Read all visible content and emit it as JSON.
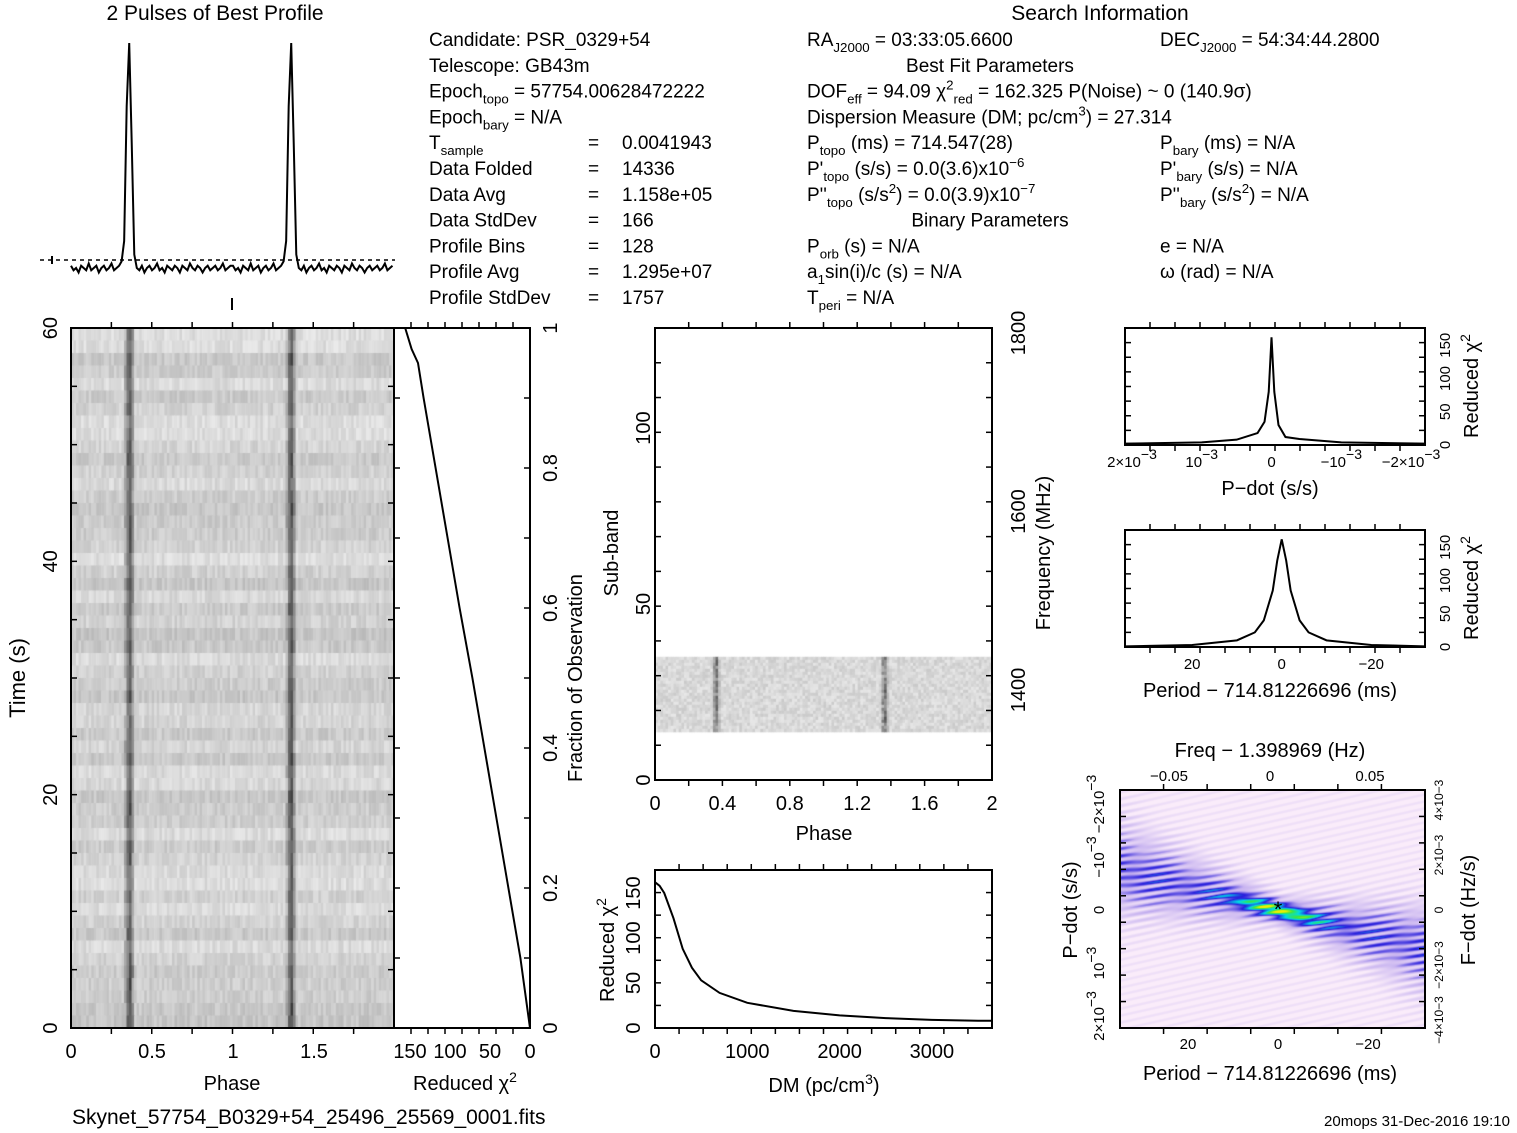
{
  "profile_title": "2 Pulses of Best Profile",
  "search_title": "Search Information",
  "info": {
    "left": [
      [
        "Candidate:  PSR_0329+54"
      ],
      [
        "Telescope:  GB43m"
      ],
      [
        "Epoch",
        {
          "sub": "topo"
        },
        " = 57754.00628472222"
      ],
      [
        "Epoch",
        {
          "sub": "bary"
        },
        " = N/A"
      ],
      [
        "T",
        {
          "sub": "sample"
        }
      ],
      [
        "Data Folded"
      ],
      [
        "Data Avg"
      ],
      [
        "Data StdDev"
      ],
      [
        "Profile Bins"
      ],
      [
        "Profile Avg"
      ],
      [
        "Profile StdDev"
      ]
    ],
    "left_values": [
      null,
      null,
      null,
      null,
      "0.0041943",
      "14336",
      "1.158e+05",
      "166",
      "128",
      "1.295e+07",
      "1757"
    ],
    "equals": "=",
    "mid": [
      [
        "RA",
        {
          "sub": "J2000"
        },
        " = 03:33:05.6600"
      ],
      {
        "heading": "Best Fit Parameters"
      },
      [
        "DOF",
        {
          "sub": "eff"
        },
        " = 94.09  χ",
        {
          "sup": "2"
        },
        {
          "sub": "red"
        },
        " = 162.325  P(Noise) ~ 0   (140.9σ)"
      ],
      [
        "Dispersion Measure (DM; pc/cm",
        {
          "sup": "3"
        },
        ") = 27.314"
      ],
      [
        "P",
        {
          "sub": "topo"
        },
        " (ms) =  714.547(28)"
      ],
      [
        "P'",
        {
          "sub": "topo"
        },
        " (s/s) = 0.0(3.6)x10",
        {
          "sup": "−6"
        }
      ],
      [
        "P''",
        {
          "sub": "topo"
        },
        " (s/s",
        {
          "sup": "2"
        },
        ") = 0.0(3.9)x10",
        {
          "sup": "−7"
        }
      ],
      {
        "heading": "Binary Parameters"
      },
      [
        "P",
        {
          "sub": "orb"
        },
        " (s) = N/A"
      ],
      [
        "a",
        {
          "sub": "1"
        },
        "sin(i)/c (s) = N/A"
      ],
      [
        "T",
        {
          "sub": "peri"
        },
        " = N/A"
      ]
    ],
    "right": [
      [
        "DEC",
        {
          "sub": "J2000"
        },
        " = 54:34:44.2800"
      ],
      null,
      null,
      null,
      [
        "P",
        {
          "sub": "bary"
        },
        " (ms) = N/A"
      ],
      [
        "P'",
        {
          "sub": "bary"
        },
        " (s/s) = N/A"
      ],
      [
        "P''",
        {
          "sub": "bary"
        },
        " (s/s",
        {
          "sup": "2"
        },
        ") = N/A"
      ],
      null,
      [
        "e = N/A"
      ],
      [
        "ω (rad) = N/A"
      ]
    ]
  },
  "footer": {
    "filename": "Skynet_57754_B0329+54_25496_25569_0001.fits",
    "stamp": "20mops 31-Dec-2016 19:10"
  },
  "chart_data": [
    {
      "id": "profile",
      "type": "line",
      "title": "2 Pulses of Best Profile",
      "x_range": [
        0,
        2
      ],
      "pulses": 2,
      "values_one_period": [
        0.01,
        -0.01,
        0.0,
        -0.02,
        0.01,
        0.0,
        -0.01,
        0.02,
        -0.01,
        0.0,
        0.01,
        -0.02,
        0.0,
        0.01,
        -0.01,
        0.0,
        0.02,
        -0.01,
        0.0,
        0.01,
        0.03,
        0.12,
        0.72,
        1.0,
        0.55,
        0.06,
        0.0,
        -0.01,
        0.01,
        -0.02,
        0.0,
        0.01,
        -0.01,
        0.0,
        0.02,
        -0.01,
        0.0,
        -0.02,
        0.01,
        0.0,
        -0.01,
        0.01,
        0.0,
        -0.02,
        0.01,
        0.0,
        -0.01,
        0.02,
        0.0,
        -0.01,
        0.01,
        0.0,
        -0.02,
        0.0,
        0.01,
        -0.01,
        0.0,
        0.01,
        -0.01,
        0.0,
        0.02,
        -0.01,
        0.0,
        0.01
      ]
    },
    {
      "id": "time-phase",
      "type": "heatmap",
      "xlabel": "Phase",
      "ylabel": "Time (s)",
      "x_range": [
        0,
        2
      ],
      "y_range": [
        0,
        60
      ],
      "xticks": [
        "0",
        "0.5",
        "1",
        "1.5"
      ],
      "yticks": [
        "0",
        "20",
        "40",
        "60"
      ],
      "pulse_phase": 0.355,
      "subintegrations": 56
    },
    {
      "id": "chi2-vs-time",
      "type": "line",
      "xlabel": "Reduced χ2",
      "ylabel": "Fraction of Observation",
      "x_range": [
        0,
        165
      ],
      "y_range": [
        0,
        1
      ],
      "xticks": [
        "150",
        "100",
        "50",
        "0"
      ],
      "yticks": [
        "0",
        "0.2",
        "0.4",
        "0.6",
        "0.8",
        "1"
      ],
      "fraction": [
        0,
        0.05,
        0.1,
        0.2,
        0.3,
        0.4,
        0.5,
        0.6,
        0.7,
        0.8,
        0.9,
        0.95,
        0.97,
        1.0
      ],
      "chi2": [
        0,
        6,
        12,
        27,
        42,
        57,
        72,
        88,
        103,
        118,
        133,
        140,
        148,
        156
      ]
    },
    {
      "id": "subband-phase",
      "type": "heatmap",
      "xlabel": "Phase",
      "ylabel": "Sub-band",
      "y2label": "Frequency (MHz)",
      "x_range": [
        0,
        2
      ],
      "y_range": [
        0,
        128
      ],
      "xticks": [
        "0",
        "0.4",
        "0.8",
        "1.2",
        "1.6",
        "2"
      ],
      "yticks": [
        "0",
        "50",
        "100"
      ],
      "y2ticks": [
        "1400",
        "1600",
        "1800"
      ],
      "data_subbands": [
        14,
        35
      ],
      "pulse_phase": 0.355
    },
    {
      "id": "chi2-vs-dm",
      "type": "line",
      "xlabel": "DM (pc/cm3)",
      "ylabel": "Reduced χ2",
      "x_range": [
        0,
        3650
      ],
      "y_range": [
        0,
        175
      ],
      "xticks": [
        "0",
        "1000",
        "2000",
        "3000"
      ],
      "yticks": [
        "0",
        "50",
        "100",
        "150"
      ],
      "dm": [
        0,
        50,
        100,
        200,
        300,
        400,
        500,
        700,
        1000,
        1500,
        2000,
        2500,
        3000,
        3500,
        3650
      ],
      "chi2": [
        162,
        158,
        150,
        122,
        88,
        67,
        53,
        39,
        28,
        19,
        14,
        11,
        9,
        8,
        8
      ]
    },
    {
      "id": "chi2-vs-pdot",
      "type": "line",
      "xlabel": "P−dot (s/s)",
      "ylabel": "Reduced χ2",
      "x_range": [
        0.0021,
        -0.0022
      ],
      "y_range": [
        0,
        175
      ],
      "xticks": [
        "2×10−3",
        "10−3",
        "0",
        "−10−3",
        "−2×10−3"
      ],
      "yticks": [
        "0",
        "50",
        "100",
        "150"
      ],
      "pdot": [
        0.0021,
        0.001,
        0.0005,
        0.0002,
        0.0001,
        4e-05,
        0,
        -4e-05,
        -0.0001,
        -0.0002,
        -0.0004,
        -0.001,
        -0.0022
      ],
      "chi2": [
        2,
        4,
        8,
        18,
        35,
        80,
        162,
        80,
        30,
        12,
        9,
        4,
        2
      ]
    },
    {
      "id": "chi2-vs-period",
      "type": "line",
      "xlabel": "Period − 714.81226696 (ms)",
      "ylabel": "Reduced χ2",
      "x_range": [
        35,
        -32
      ],
      "y_range": [
        0,
        175
      ],
      "xticks": [
        "20",
        "0",
        "−20"
      ],
      "yticks": [
        "0",
        "50",
        "100",
        "150"
      ],
      "period": [
        35,
        20,
        10,
        6,
        4,
        2,
        1,
        0,
        -1,
        -2,
        -4,
        -6,
        -10,
        -20,
        -32
      ],
      "chi2": [
        1,
        3,
        10,
        22,
        40,
        85,
        130,
        162,
        130,
        85,
        40,
        22,
        10,
        3,
        1
      ]
    },
    {
      "id": "period-pdot",
      "type": "heatmap",
      "xlabel": "Period − 714.81226696 (ms)",
      "ylabel": "P−dot (s/s)",
      "x2label": "Freq − 1.398969 (Hz)",
      "y2label": "F−dot (Hz/s)",
      "x_range": [
        35,
        -32
      ],
      "y_range": [
        0.0021,
        -0.0023
      ],
      "xticks": [
        "20",
        "0",
        "−20"
      ],
      "x2ticks": [
        "−0.05",
        "0",
        "0.05"
      ],
      "yticks": [
        "2×10−3",
        "10−3",
        "0",
        "−10−3",
        "−2×10−3"
      ],
      "y2ticks": [
        "−4×10−3",
        "−2×10−3",
        "0",
        "2×10−3",
        "4×10−3"
      ],
      "best_marker": "*"
    }
  ]
}
